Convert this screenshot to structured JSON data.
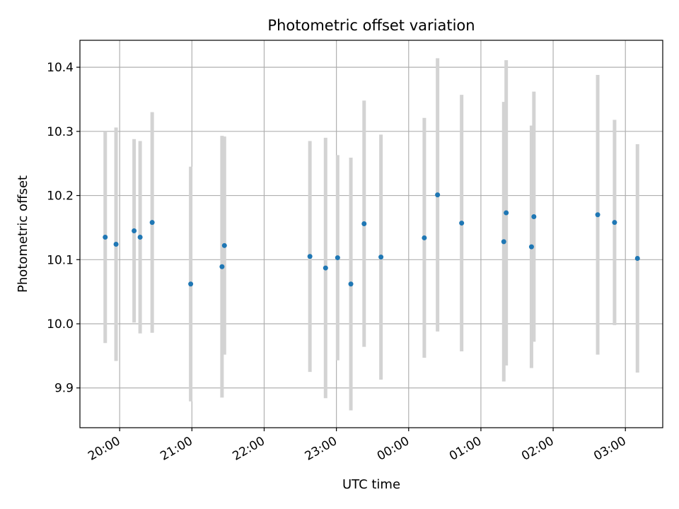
{
  "chart_data": {
    "type": "scatter",
    "title": "Photometric offset variation",
    "xlabel": "UTC time",
    "ylabel": "Photometric offset",
    "x_ticks": [
      "20:00",
      "21:00",
      "22:00",
      "23:00",
      "00:00",
      "01:00",
      "02:00",
      "03:00"
    ],
    "y_ticks": [
      "9.9",
      "10.0",
      "10.1",
      "10.2",
      "10.3",
      "10.4"
    ],
    "xlim": [
      "19:27",
      "03:31"
    ],
    "ylim": [
      9.838,
      10.442
    ],
    "grid": true,
    "point_color": "#1f77b4",
    "errorbar_color": "#d3d3d3",
    "points": [
      {
        "x": "19:48",
        "y": 10.135,
        "err": 0.165
      },
      {
        "x": "19:57",
        "y": 10.124,
        "err": 0.182
      },
      {
        "x": "20:12",
        "y": 10.145,
        "err": 0.143
      },
      {
        "x": "20:17",
        "y": 10.135,
        "err": 0.15
      },
      {
        "x": "20:27",
        "y": 10.158,
        "err": 0.172
      },
      {
        "x": "20:59",
        "y": 10.062,
        "err": 0.183
      },
      {
        "x": "21:25",
        "y": 10.089,
        "err": 0.204
      },
      {
        "x": "21:27",
        "y": 10.122,
        "err": 0.17
      },
      {
        "x": "22:38",
        "y": 10.105,
        "err": 0.18
      },
      {
        "x": "22:51",
        "y": 10.087,
        "err": 0.203
      },
      {
        "x": "23:01",
        "y": 10.103,
        "err": 0.16
      },
      {
        "x": "23:12",
        "y": 10.062,
        "err": 0.197
      },
      {
        "x": "23:23",
        "y": 10.156,
        "err": 0.192
      },
      {
        "x": "23:37",
        "y": 10.104,
        "err": 0.191
      },
      {
        "x": "00:13",
        "y": 10.134,
        "err": 0.187
      },
      {
        "x": "00:24",
        "y": 10.201,
        "err": 0.213
      },
      {
        "x": "00:44",
        "y": 10.157,
        "err": 0.2
      },
      {
        "x": "01:19",
        "y": 10.128,
        "err": 0.218
      },
      {
        "x": "01:21",
        "y": 10.173,
        "err": 0.238
      },
      {
        "x": "01:42",
        "y": 10.12,
        "err": 0.189
      },
      {
        "x": "01:44",
        "y": 10.167,
        "err": 0.195
      },
      {
        "x": "02:37",
        "y": 10.17,
        "err": 0.218
      },
      {
        "x": "02:51",
        "y": 10.158,
        "err": 0.16
      },
      {
        "x": "03:10",
        "y": 10.102,
        "err": 0.178
      }
    ]
  }
}
